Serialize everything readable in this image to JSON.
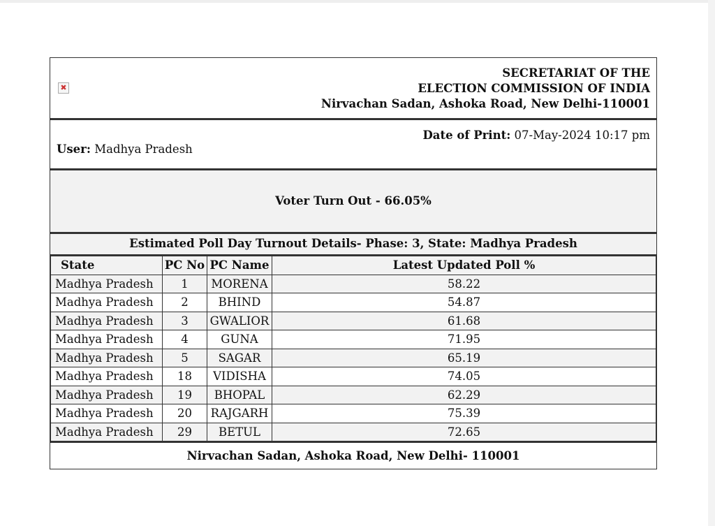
{
  "header": {
    "logo_icon": "broken-image-icon",
    "line1": "SECRETARIAT OF THE",
    "line2": "ELECTION COMMISSION OF INDIA",
    "line3": "Nirvachan Sadan, Ashoka Road, New Delhi-110001"
  },
  "user": {
    "label": "User:",
    "value": "Madhya Pradesh"
  },
  "print_date": {
    "label": "Date of Print:",
    "value": "07-May-2024 10:17 pm"
  },
  "turnout": "Voter Turn Out - 66.05%",
  "table_title": "Estimated Poll Day Turnout Details- Phase: 3, State: Madhya Pradesh",
  "columns": [
    "State",
    "PC No",
    "PC Name",
    "Latest Updated Poll %"
  ],
  "rows": [
    [
      "Madhya Pradesh",
      "1",
      "MORENA",
      "58.22"
    ],
    [
      "Madhya Pradesh",
      "2",
      "BHIND",
      "54.87"
    ],
    [
      "Madhya Pradesh",
      "3",
      "GWALIOR",
      "61.68"
    ],
    [
      "Madhya Pradesh",
      "4",
      "GUNA",
      "71.95"
    ],
    [
      "Madhya Pradesh",
      "5",
      "SAGAR",
      "65.19"
    ],
    [
      "Madhya Pradesh",
      "18",
      "VIDISHA",
      "74.05"
    ],
    [
      "Madhya Pradesh",
      "19",
      "BHOPAL",
      "62.29"
    ],
    [
      "Madhya Pradesh",
      "20",
      "RAJGARH",
      "75.39"
    ],
    [
      "Madhya Pradesh",
      "29",
      "BETUL",
      "72.65"
    ]
  ],
  "footer": "Nirvachan Sadan, Ashoka Road, New Delhi- 110001"
}
